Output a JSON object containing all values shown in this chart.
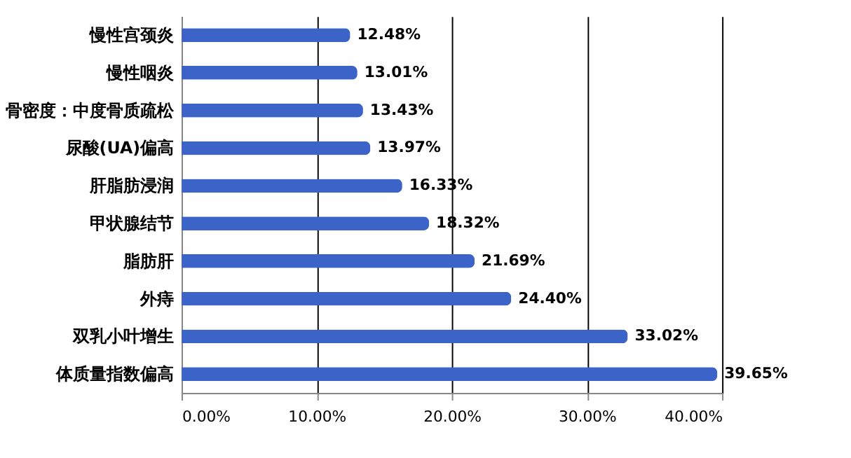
{
  "chart_data": {
    "type": "bar",
    "orientation": "horizontal",
    "categories": [
      "慢性宫颈炎",
      "慢性咽炎",
      "骨密度：中度骨质疏松",
      "尿酸(UA)偏高",
      "肝脂肪浸润",
      "甲状腺结节",
      "脂肪肝",
      "外痔",
      "双乳小叶增生",
      "体质量指数偏高"
    ],
    "values": [
      12.48,
      13.01,
      13.43,
      13.97,
      16.33,
      18.32,
      21.69,
      24.4,
      33.02,
      39.65
    ],
    "value_labels": [
      "12.48%",
      "13.01%",
      "13.43%",
      "13.97%",
      "16.33%",
      "18.32%",
      "21.69%",
      "24.40%",
      "33.02%",
      "39.65%"
    ],
    "color": "#3c63c8",
    "xlim": [
      0,
      40
    ],
    "xticks": [
      {
        "value": 0,
        "label": "0.00%"
      },
      {
        "value": 10,
        "label": "10.00%"
      },
      {
        "value": 20,
        "label": "20.00%"
      },
      {
        "value": 30,
        "label": "30.00%"
      },
      {
        "value": 40,
        "label": "40.00%"
      }
    ],
    "grid": "x"
  }
}
